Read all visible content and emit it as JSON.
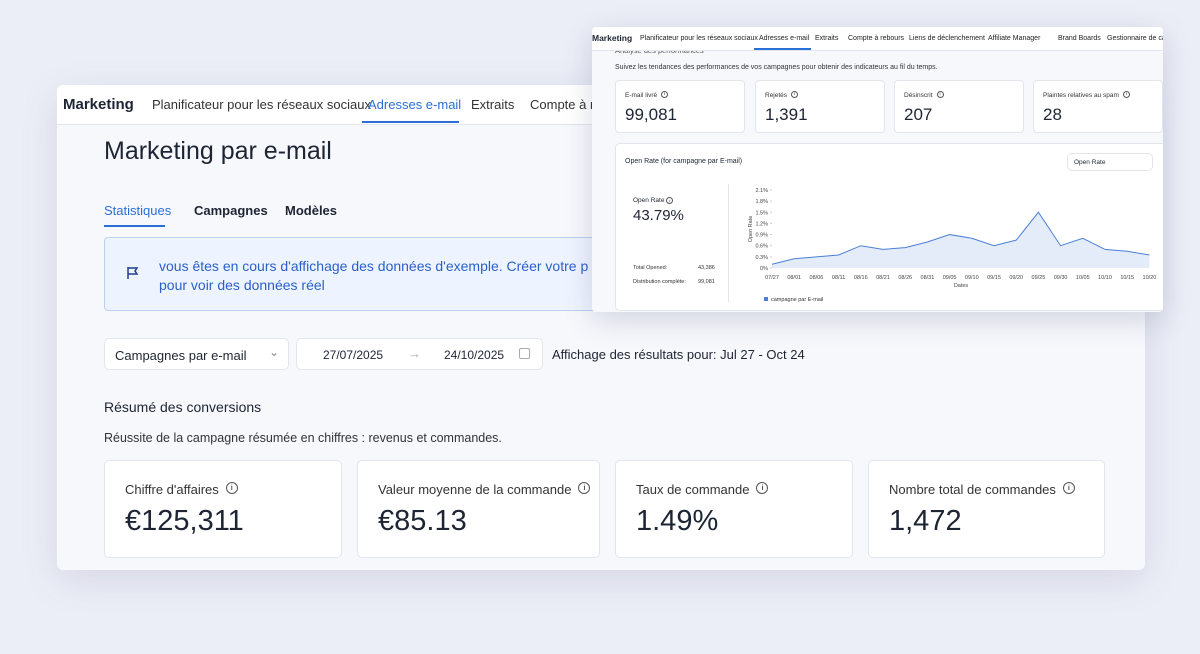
{
  "main": {
    "nav": {
      "brand": "Marketing",
      "tabs": [
        "Planificateur pour les réseaux sociaux",
        "Adresses e-mail",
        "Extraits",
        "Compte à rebours"
      ]
    },
    "title": "Marketing par e-mail",
    "subtabs": [
      "Statistiques",
      "Campagnes",
      "Modèles"
    ],
    "banner": [
      "vous êtes en cours d'affichage des données d'exemple. Créer votre p",
      "pour voir des données réel"
    ],
    "filter": {
      "select": "Campagnes par e-mail",
      "date_from": "27/07/2025",
      "date_to": "24/10/2025",
      "results": "Affichage des résultats pour: Jul 27 - Oct 24"
    },
    "section_title": "Résumé des conversions",
    "section_desc": "Réussite de la campagne résumée en chiffres : revenus et commandes.",
    "kpis": [
      {
        "label": "Chiffre d'affaires",
        "value": "€125,311"
      },
      {
        "label": "Valeur moyenne de la commande",
        "value": "€85.13"
      },
      {
        "label": "Taux de commande",
        "value": "1.49%"
      },
      {
        "label": "Nombre total de commandes",
        "value": "1,472"
      }
    ]
  },
  "overlay": {
    "nav": {
      "brand": "Marketing",
      "tabs": [
        "Planificateur pour les réseaux sociaux",
        "Adresses e-mail",
        "Extraits",
        "Compte à rebours",
        "Liens de déclenchement",
        "Affiliate Manager",
        "Brand Boards",
        "Gestionnaire de cam"
      ]
    },
    "heading": "Analyse des performances",
    "desc": "Suivez les tendances des performances de vos campagnes pour obtenir des indicateurs au fil du temps.",
    "stats": [
      {
        "label": "E-mail livré",
        "value": "99,081"
      },
      {
        "label": "Rejetés",
        "value": "1,391"
      },
      {
        "label": "Désinscrit",
        "value": "207"
      },
      {
        "label": "Plaintes relatives au spam",
        "value": "28"
      }
    ],
    "chart_card": {
      "title": "Open Rate (for campagne par E-mail)",
      "dropdown": "Open Rate",
      "metric_label": "Open Rate",
      "metric_value": "43.79%",
      "rows": [
        {
          "label": "Total Opened:",
          "value": "43,386"
        },
        {
          "label": "Distribution complète:",
          "value": "99,081"
        }
      ]
    },
    "chart_data": {
      "type": "area",
      "ylabel": "Open Rate",
      "xlabel": "Dates",
      "categories": [
        "07/27",
        "08/01",
        "08/06",
        "08/11",
        "08/16",
        "08/21",
        "08/26",
        "08/31",
        "09/05",
        "09/10",
        "09/15",
        "09/20",
        "09/25",
        "09/30",
        "10/05",
        "10/10",
        "10/15",
        "10/20"
      ],
      "series": [
        {
          "name": "campagne par E-mail",
          "color": "#4a7fd6",
          "values": [
            0.1,
            0.25,
            0.3,
            0.35,
            0.6,
            0.5,
            0.55,
            0.7,
            0.9,
            0.8,
            0.6,
            0.75,
            1.5,
            0.6,
            0.8,
            0.5,
            0.45,
            0.35
          ]
        }
      ],
      "ylim": [
        0,
        2.1
      ],
      "yticks": [
        {
          "value": 0,
          "label": "0%"
        },
        {
          "value": 0.3,
          "label": "0.3%"
        },
        {
          "value": 0.6,
          "label": "0.6%"
        },
        {
          "value": 0.9,
          "label": "0.9%"
        },
        {
          "value": 1.2,
          "label": "1.2%"
        },
        {
          "value": 1.5,
          "label": "1.5%"
        },
        {
          "value": 1.8,
          "label": "1.8%"
        },
        {
          "value": 2.1,
          "label": "2.1%"
        }
      ]
    }
  }
}
